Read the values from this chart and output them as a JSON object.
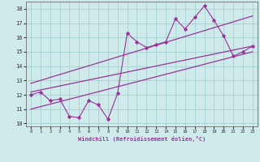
{
  "xlabel": "Windchill (Refroidissement éolien,°C)",
  "bg_color": "#ceeaea",
  "grid_color": "#aad4d4",
  "line_color": "#993399",
  "x_data": [
    0,
    1,
    2,
    3,
    4,
    5,
    6,
    7,
    8,
    9,
    10,
    11,
    12,
    13,
    14,
    15,
    16,
    17,
    18,
    19,
    20,
    21,
    22,
    23
  ],
  "y_scatter": [
    12.0,
    12.2,
    11.6,
    11.7,
    10.5,
    10.4,
    11.6,
    11.3,
    10.3,
    12.1,
    16.3,
    15.7,
    15.3,
    15.5,
    15.7,
    17.3,
    16.6,
    17.4,
    18.2,
    17.2,
    16.1,
    14.7,
    15.0,
    15.4
  ],
  "ylim": [
    9.8,
    18.5
  ],
  "xlim": [
    -0.5,
    23.5
  ],
  "yticks": [
    10,
    11,
    12,
    13,
    14,
    15,
    16,
    17,
    18
  ],
  "xticks": [
    0,
    1,
    2,
    3,
    4,
    5,
    6,
    7,
    8,
    9,
    10,
    11,
    12,
    13,
    14,
    15,
    16,
    17,
    18,
    19,
    20,
    21,
    22,
    23
  ],
  "reg_upper": [
    0,
    12.8,
    23,
    17.5
  ],
  "reg_mid": [
    0,
    12.2,
    23,
    15.4
  ],
  "reg_lower": [
    0,
    11.0,
    23,
    15.0
  ]
}
